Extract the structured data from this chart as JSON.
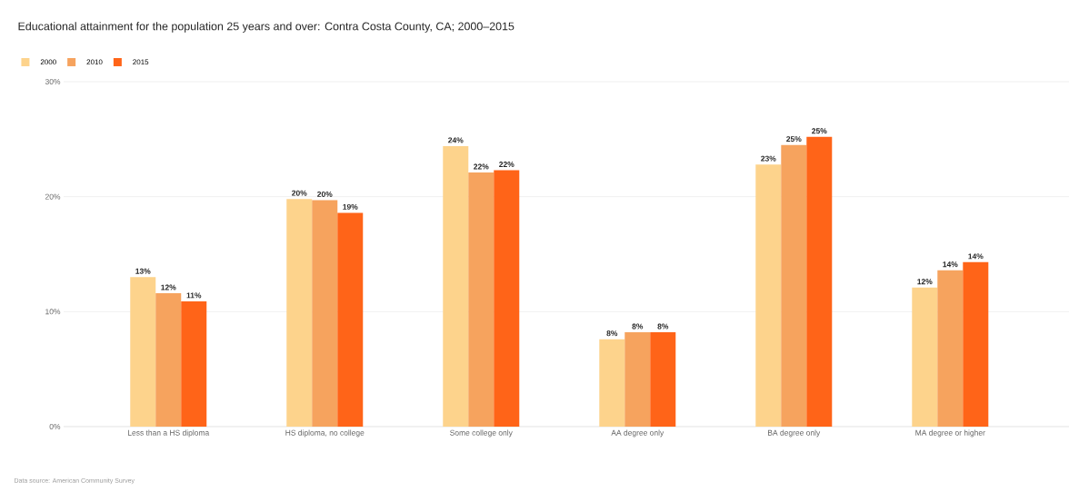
{
  "chart_data": {
    "type": "bar",
    "title": "Educational attainment for the population 25 years and over: Contra Costa County, CA; 2000–2015",
    "categories": [
      "Less than a HS diploma",
      "HS diploma, no college",
      "Some college only",
      "AA degree only",
      "BA degree only",
      "MA degree or higher"
    ],
    "series": [
      {
        "name": "2000",
        "color": "#fdd38c",
        "values": [
          13.0,
          19.8,
          24.4,
          7.6,
          22.8,
          12.1
        ],
        "value_labels": [
          "13%",
          "20%",
          "24%",
          "8%",
          "23%",
          "12%"
        ]
      },
      {
        "name": "2010",
        "color": "#f6a35e",
        "values": [
          11.6,
          19.7,
          22.1,
          8.2,
          24.5,
          13.6
        ],
        "value_labels": [
          "12%",
          "20%",
          "22%",
          "8%",
          "25%",
          "14%"
        ]
      },
      {
        "name": "2015",
        "color": "#ff6418",
        "values": [
          10.9,
          18.6,
          22.3,
          8.2,
          25.2,
          14.3
        ],
        "value_labels": [
          "11%",
          "19%",
          "22%",
          "8%",
          "25%",
          "14%"
        ]
      }
    ],
    "ylim": [
      0,
      30
    ],
    "yticks": [
      {
        "value": 0,
        "label": "0%"
      },
      {
        "value": 10,
        "label": "10%"
      },
      {
        "value": 20,
        "label": "20%"
      },
      {
        "value": 30,
        "label": "30%"
      }
    ],
    "grid": "y",
    "legend": "top left",
    "annotations": [
      "Data source: American Community Survey"
    ]
  }
}
